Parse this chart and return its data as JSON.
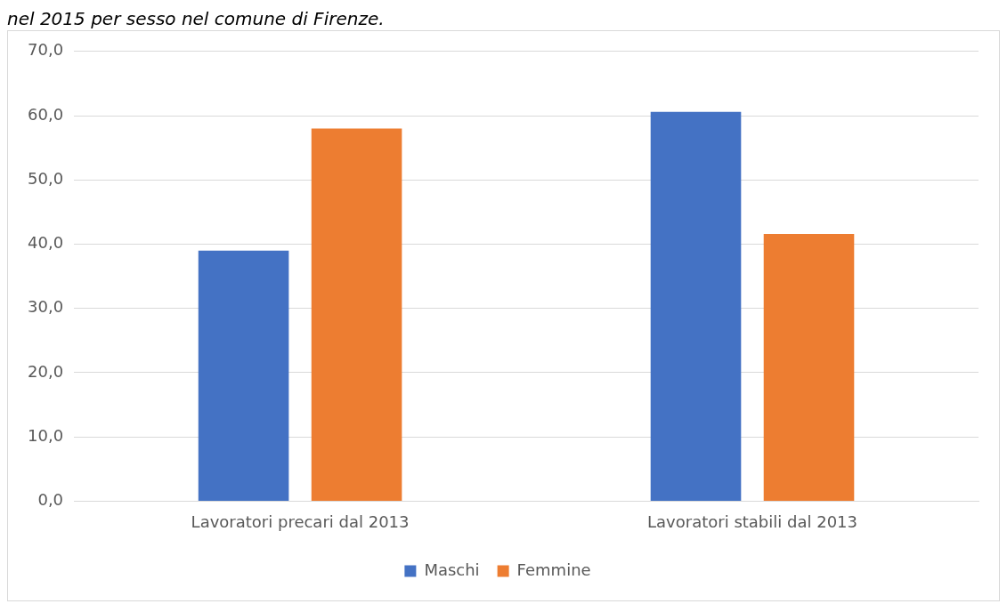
{
  "chart_data": {
    "type": "bar",
    "subtitle": "nel 2015 per sesso nel comune di Firenze.",
    "categories": [
      "Lavoratori precari dal 2013",
      "Lavoratori stabili dal 2013"
    ],
    "series": [
      {
        "name": "Maschi",
        "color": "#4472c4",
        "values": [
          39.0,
          60.6
        ]
      },
      {
        "name": "Femmine",
        "color": "#ed7d31",
        "values": [
          58.0,
          41.6
        ]
      }
    ],
    "ylim": [
      0,
      70
    ],
    "yticks": [
      {
        "value": 0,
        "label": "0,0"
      },
      {
        "value": 10,
        "label": "10,0"
      },
      {
        "value": 20,
        "label": "20,0"
      },
      {
        "value": 30,
        "label": "30,0"
      },
      {
        "value": 40,
        "label": "40,0"
      },
      {
        "value": 50,
        "label": "50,0"
      },
      {
        "value": 60,
        "label": "60,0"
      },
      {
        "value": 70,
        "label": "70,0"
      }
    ],
    "grid": "y",
    "legend": "bottom"
  }
}
